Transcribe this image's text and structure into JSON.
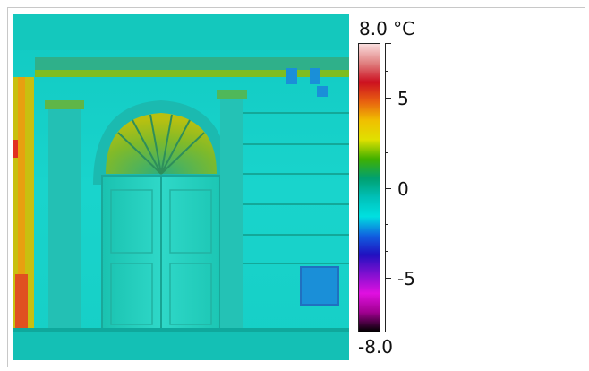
{
  "scale": {
    "max_label": "8.0 °C",
    "min_label": "-8.0",
    "tick_labels": [
      "5",
      "0",
      "-5"
    ],
    "gradient_stops": [
      "#fadede",
      "#e08080",
      "#cc1020",
      "#e86010",
      "#f0c000",
      "#e0e000",
      "#40b000",
      "#00a070",
      "#00c0b8",
      "#00e0e0",
      "#1060e0",
      "#2010c0",
      "#8010d0",
      "#e010e0",
      "#a00090",
      "#000000"
    ]
  },
  "image": {
    "description_icon": "thermal-image",
    "palette": {
      "background": "#17d3c8",
      "warm": "#e0e000",
      "hot": "#e23020",
      "cool": "#1a8fd8"
    }
  }
}
